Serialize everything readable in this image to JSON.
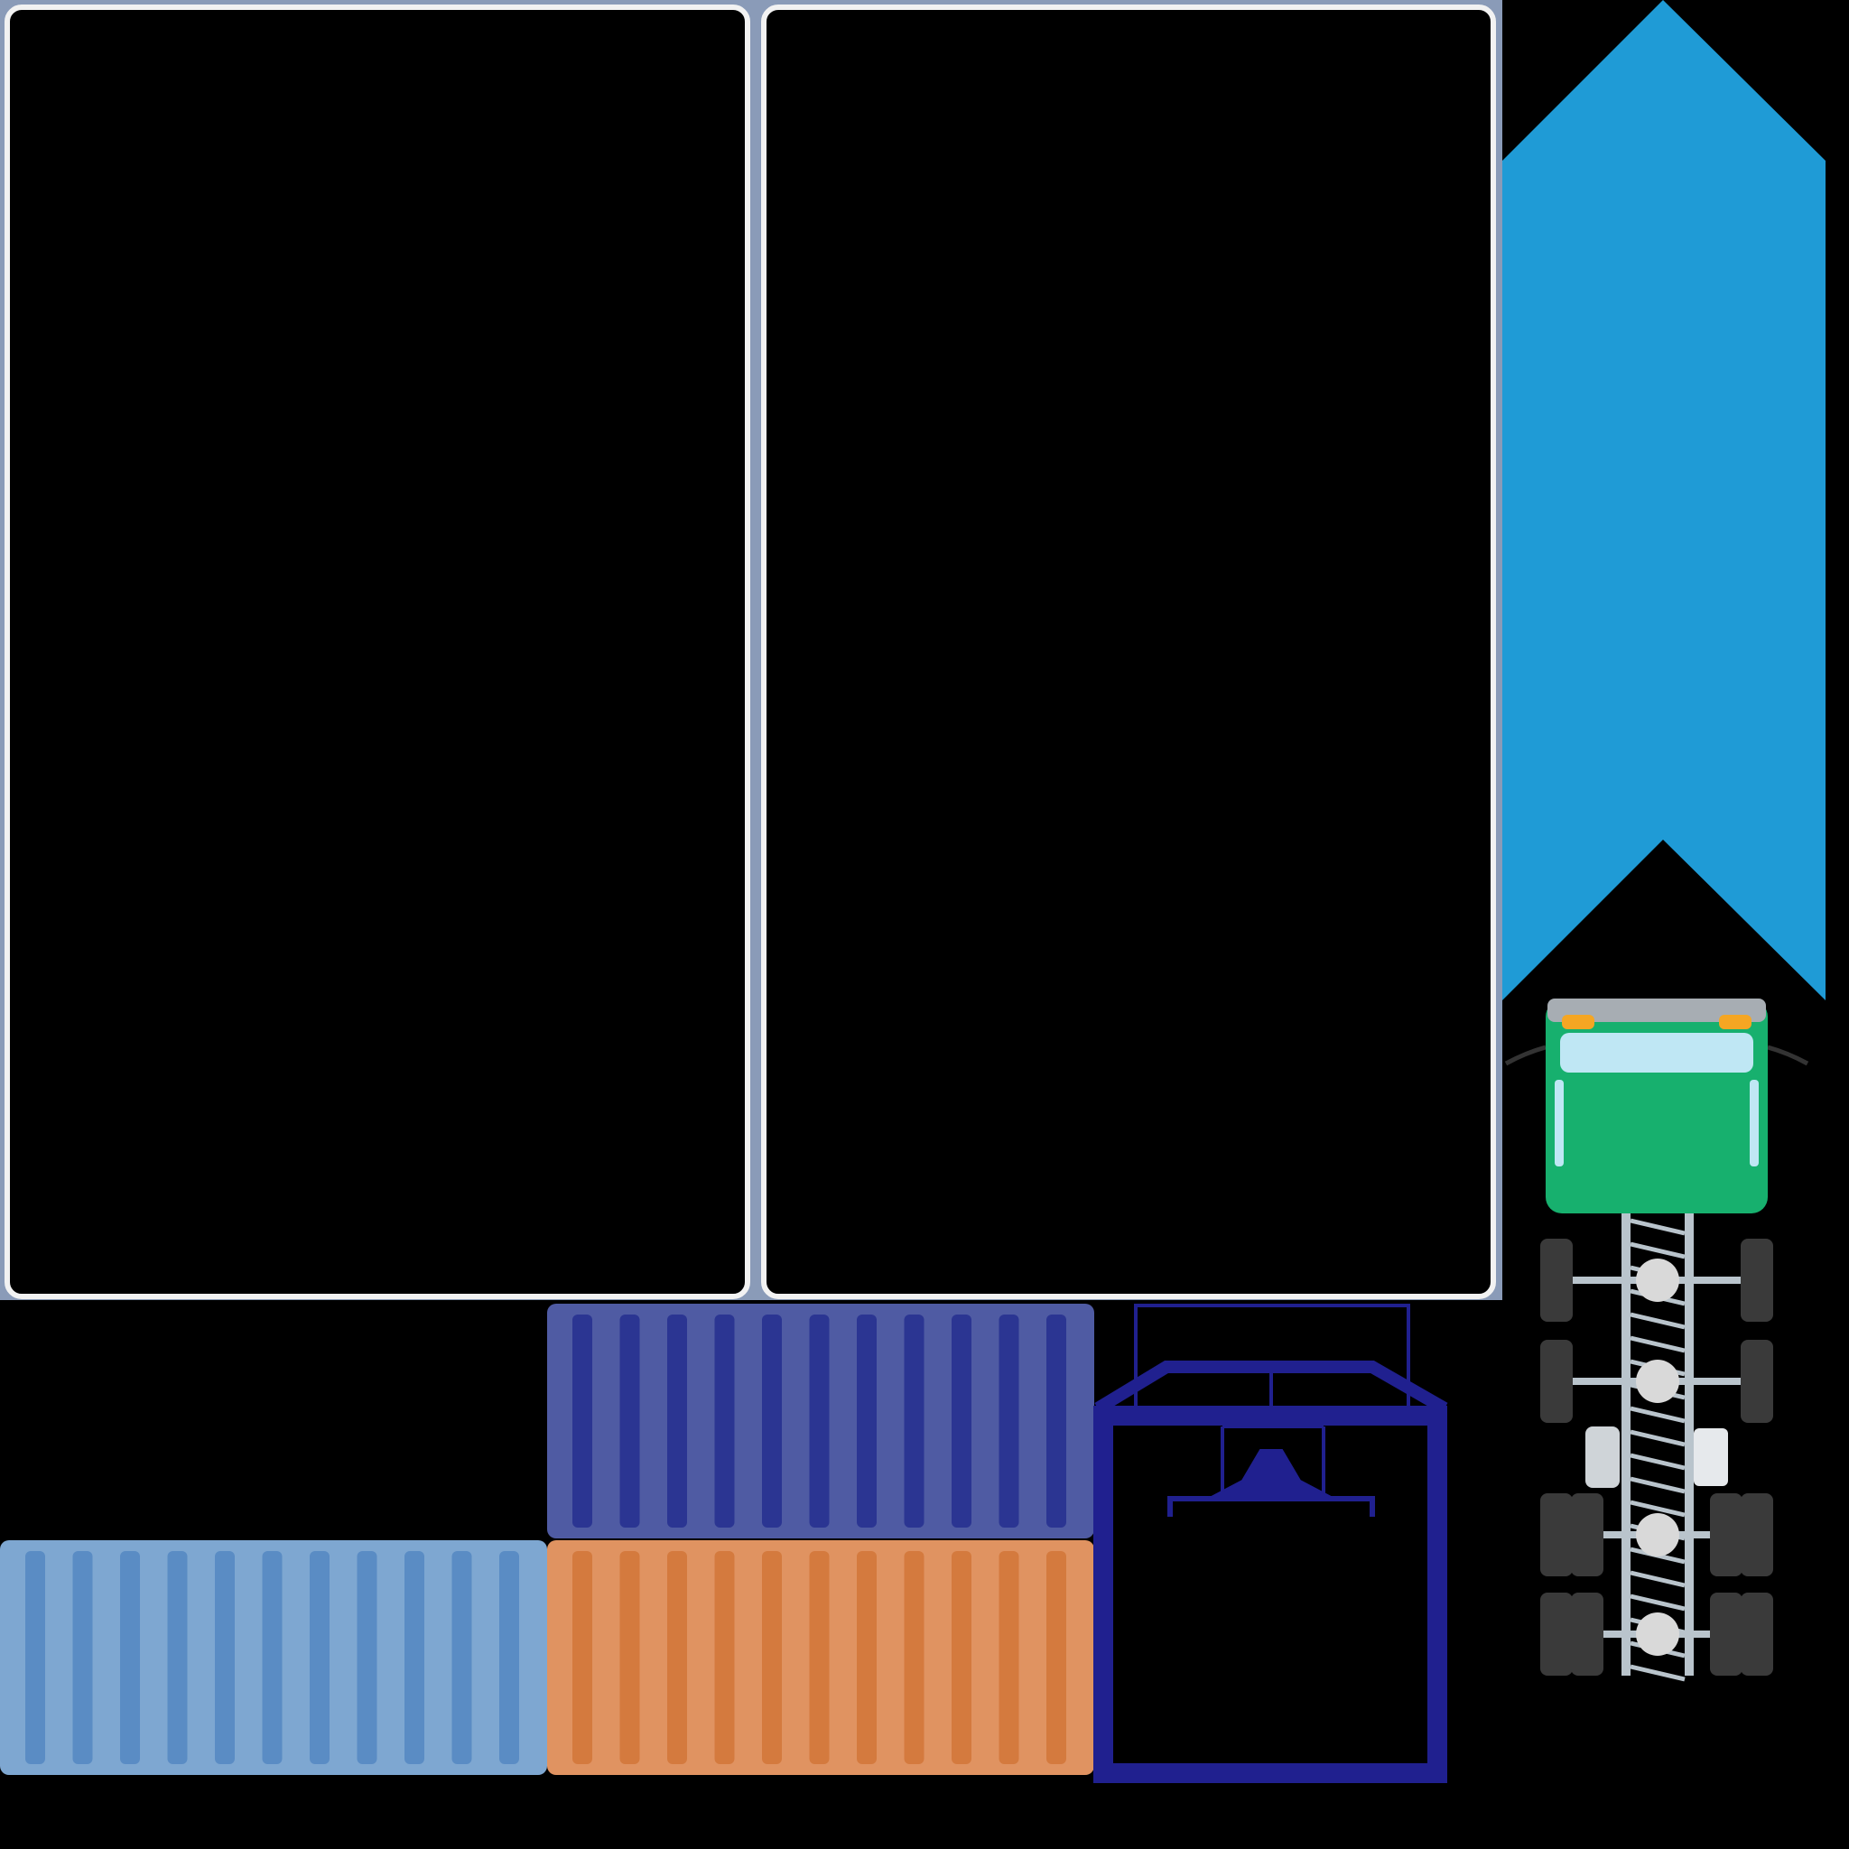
{
  "colors": {
    "background": "#000000",
    "panel_frame": "#8a9bb8",
    "panel_inner_border": "#f2f2f2",
    "arrow": "#1f9bd6",
    "container_blue_body": "#4f5ba3",
    "container_blue_stripe": "#2b3592",
    "container_lightblue_body": "#7ea7d1",
    "container_lightblue_stripe": "#5a8cc4",
    "container_orange_body": "#e09361",
    "container_orange_stripe": "#d47a3e",
    "container_frame": "#20208f",
    "truck_cab": "#17b06e",
    "truck_windshield": "#bfe7f4",
    "truck_bumper": "#a7adb3",
    "truck_light": "#f5a623",
    "truck_chassis": "#b9c4cc",
    "truck_wheel": "#3a3a3a",
    "truck_hub": "#d9d9d9"
  },
  "icons": {
    "panel_left": "blank-panel",
    "panel_right": "blank-panel",
    "arrow": "chevron-up-arrow",
    "container_blue": "shipping-container-icon",
    "container_orange": "shipping-container-icon",
    "container_lightblue": "shipping-container-icon",
    "container_frame": "container-spreader-frame-icon",
    "truck": "truck-top-view-icon"
  }
}
